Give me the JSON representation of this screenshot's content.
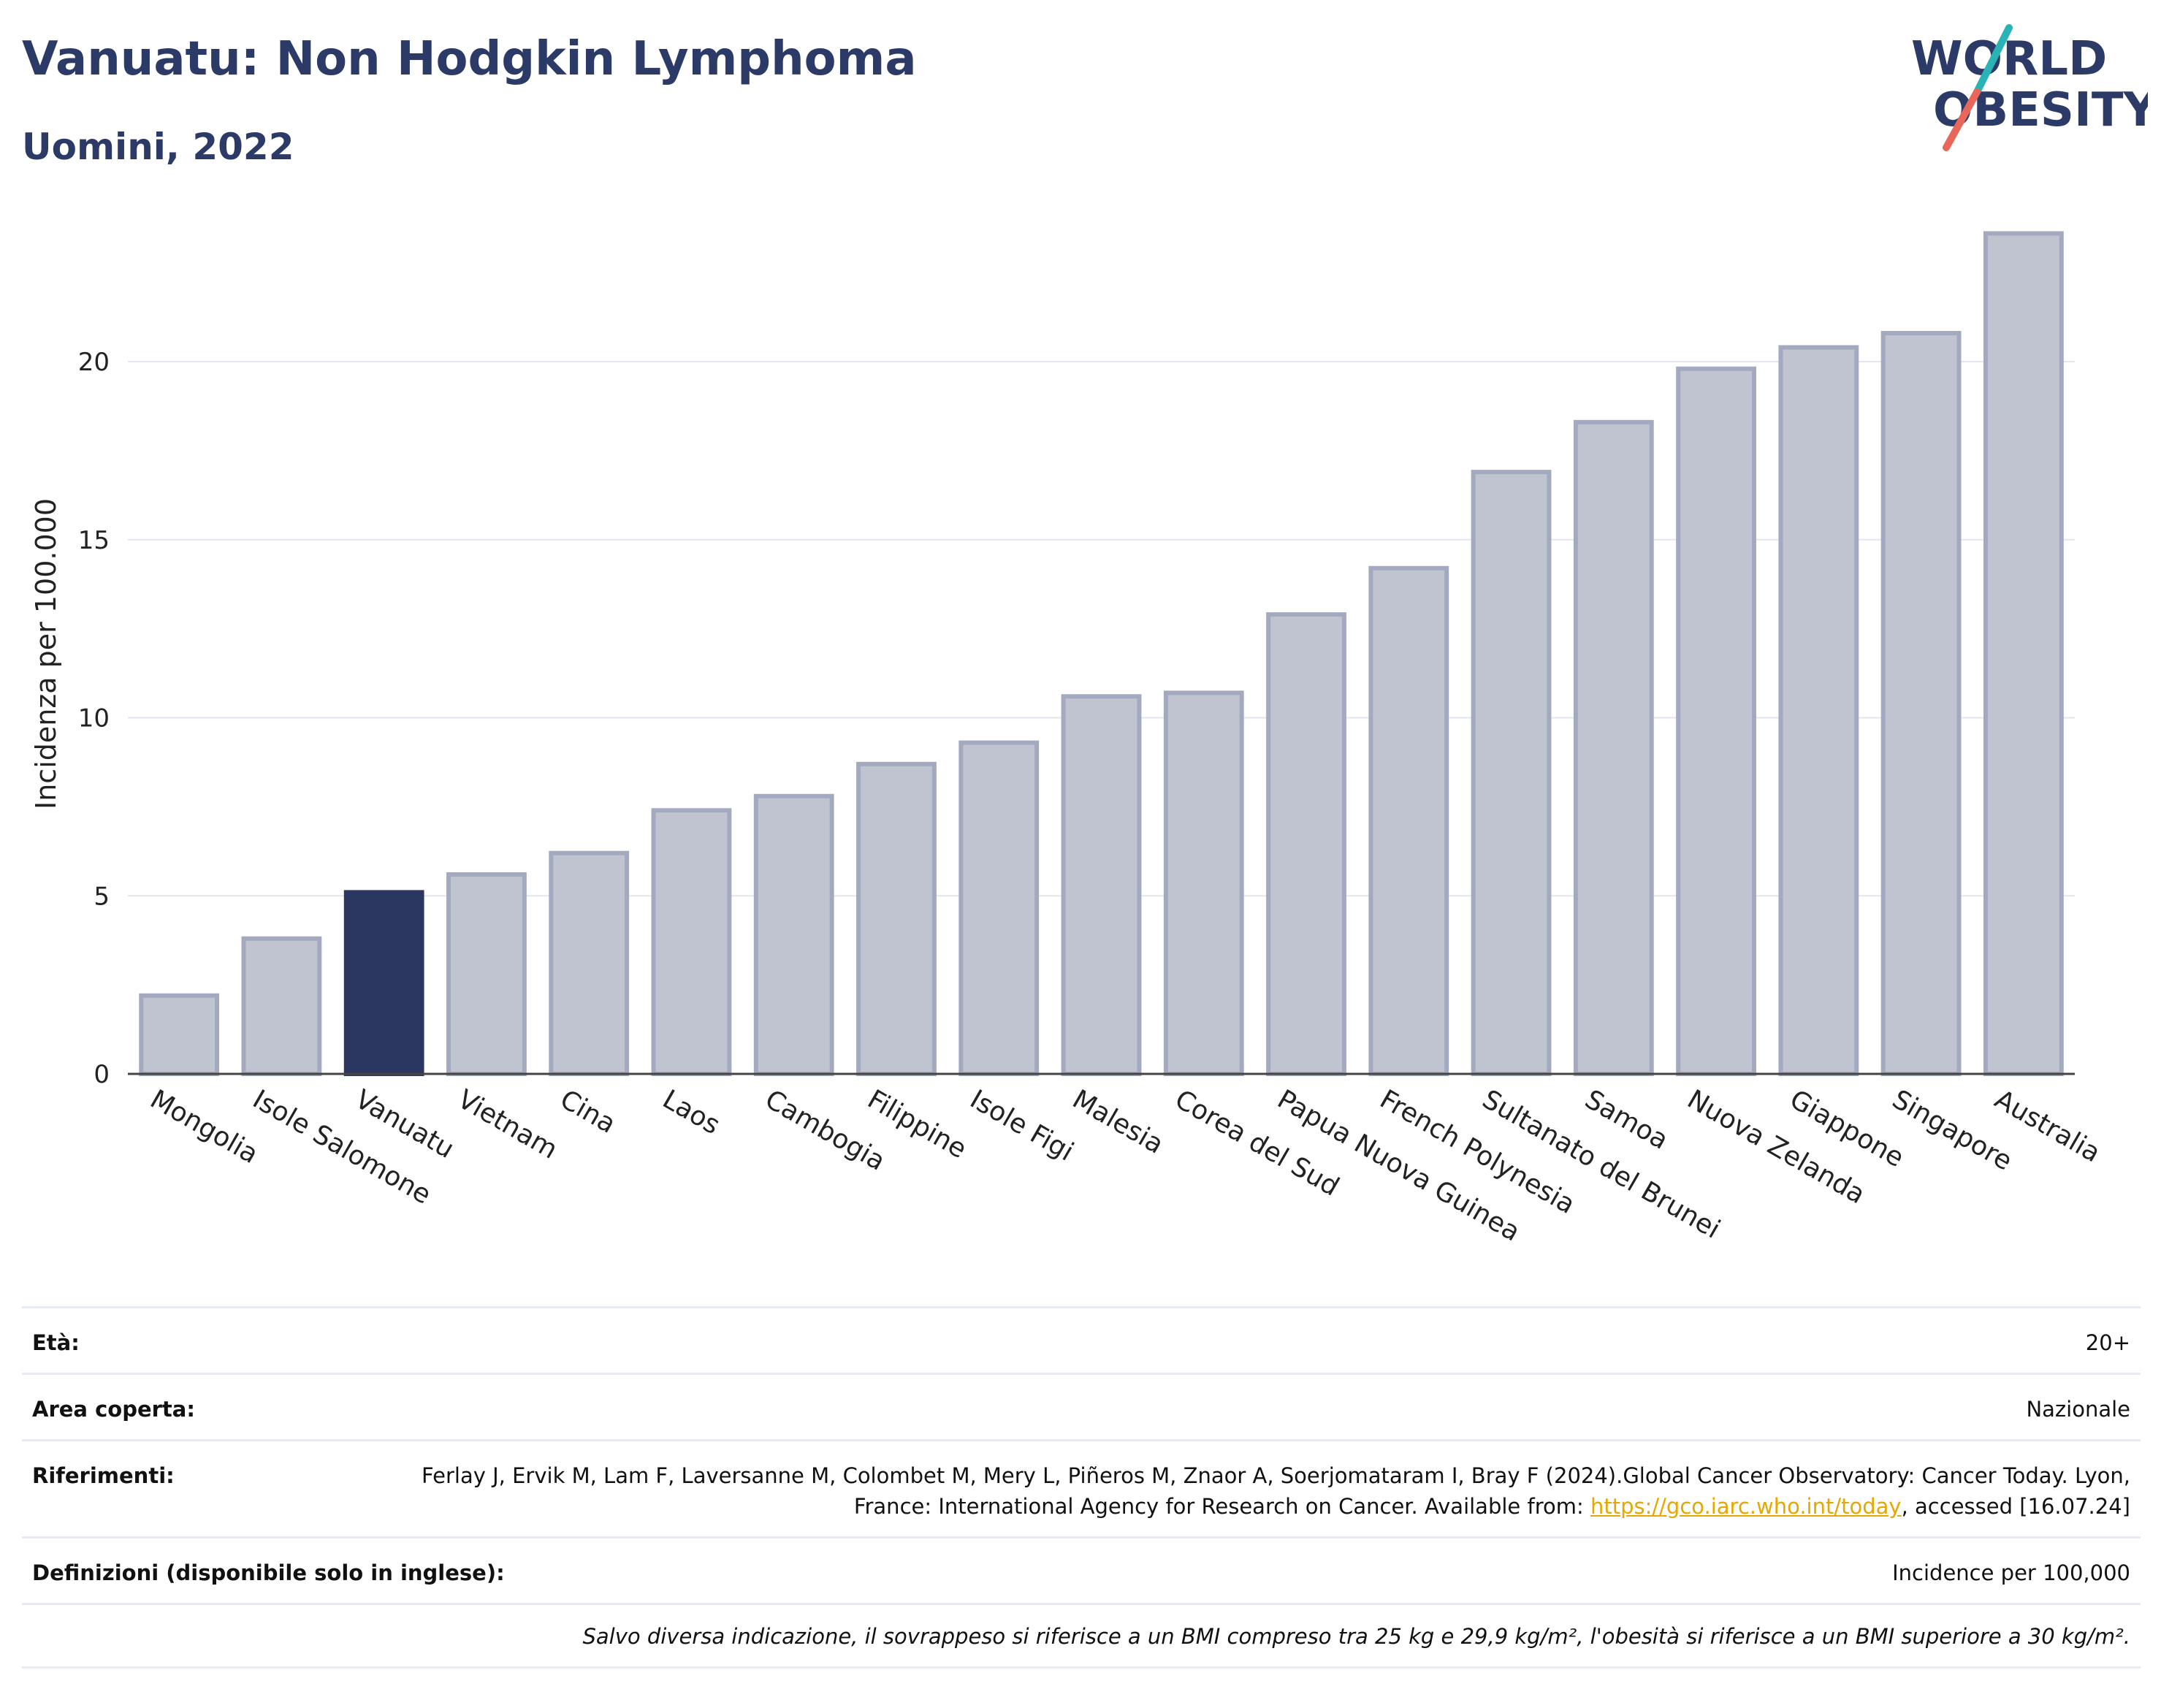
{
  "header": {
    "title": "Vanuatu: Non Hodgkin Lymphoma",
    "subtitle": "Uomini, 2022"
  },
  "logo": {
    "line1": "WORLD",
    "line2": "OBESITY",
    "color_text": "#2b3a67",
    "color_stroke_top": "#2ab3b5",
    "color_stroke_bottom": "#e8665a"
  },
  "chart_data": {
    "type": "bar",
    "ylabel": "Incidenza per 100.000",
    "ylim": [
      0,
      24
    ],
    "yticks": [
      0,
      5,
      10,
      15,
      20
    ],
    "grid": true,
    "highlight": "Vanuatu",
    "colors": {
      "bar": "#c0c4d1",
      "bar_edge": "#a3aabf",
      "highlight": "#2b3760"
    },
    "categories": [
      "Mongolia",
      "Isole Salomone",
      "Vanuatu",
      "Vietnam",
      "Cina",
      "Laos",
      "Cambogia",
      "Filippine",
      "Isole Figi",
      "Malesia",
      "Corea del Sud",
      "Papua Nuova Guinea",
      "French Polynesia",
      "Sultanato del Brunei",
      "Samoa",
      "Nuova Zelanda",
      "Giappone",
      "Singapore",
      "Australia"
    ],
    "values": [
      2.2,
      3.8,
      5.1,
      5.6,
      6.2,
      7.4,
      7.8,
      8.7,
      9.3,
      10.6,
      10.7,
      12.9,
      14.2,
      16.9,
      18.3,
      19.8,
      20.4,
      20.8,
      23.6
    ]
  },
  "info": {
    "eta": {
      "label": "Età:",
      "value": "20+"
    },
    "area": {
      "label": "Area coperta:",
      "value": "Nazionale"
    },
    "riferimenti": {
      "label": "Riferimenti:",
      "text1": "Ferlay J, Ervik M, Lam F, Laversanne M, Colombet M, Mery L, Piñeros M, Znaor A, Soerjomataram I, Bray F (2024).Global Cancer Observatory: Cancer Today. Lyon, France: International Agency for Research on Cancer. Available from: ",
      "link": "https://gco.iarc.who.int/today",
      "text2": ", accessed [16.07.24]"
    },
    "definizioni": {
      "label": "Definizioni (disponibile solo in inglese):",
      "value": "Incidence per 100,000"
    },
    "note": "Salvo diversa indicazione, il sovrappeso si riferisce a un BMI compreso tra 25 kg e 29,9 kg/m², l'obesità si riferisce a un BMI superiore a 30 kg/m²."
  }
}
